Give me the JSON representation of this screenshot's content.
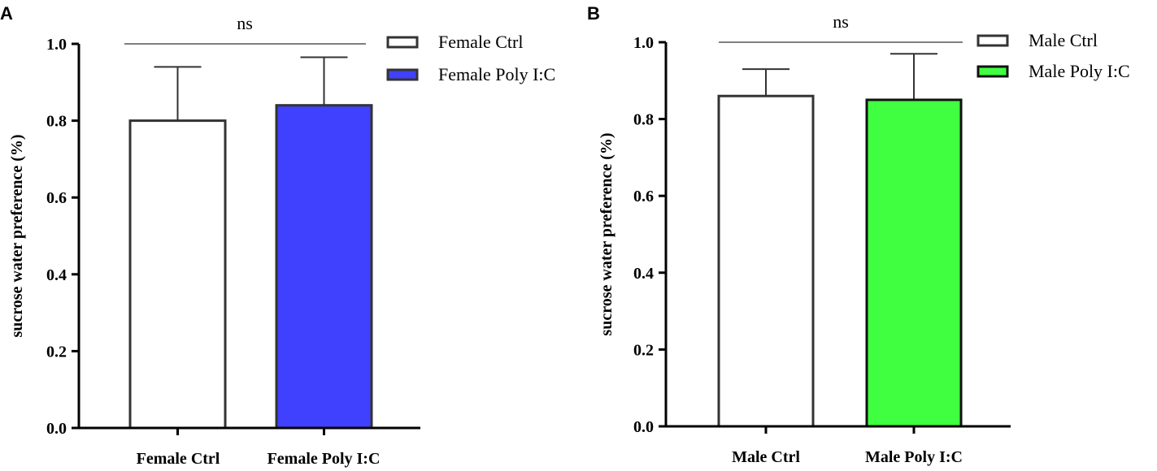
{
  "chart_data": [
    {
      "type": "bar",
      "panel": "A",
      "ylabel": "sucrose water preference (%)",
      "xlabel": "",
      "ylim": [
        0,
        1.0
      ],
      "yticks": [
        "0.0",
        "0.2",
        "0.4",
        "0.6",
        "0.8",
        "1.0"
      ],
      "categories": [
        "Female Ctrl",
        "Female Poly I:C"
      ],
      "values": [
        0.8,
        0.84
      ],
      "errors": [
        0.14,
        0.125
      ],
      "colors": [
        "#ffffff",
        "#4040ff"
      ],
      "legend": [
        {
          "label": "Female Ctrl",
          "color": "#ffffff"
        },
        {
          "label": "Female Poly I:C",
          "color": "#4040ff"
        }
      ],
      "legend_position": "top-right",
      "significance": {
        "label": "ns",
        "level": 1.0
      }
    },
    {
      "type": "bar",
      "panel": "B",
      "ylabel": "sucrose water preference (%)",
      "xlabel": "",
      "ylim": [
        0,
        1.0
      ],
      "yticks": [
        "0.0",
        "0.2",
        "0.4",
        "0.6",
        "0.8",
        "1.0"
      ],
      "categories": [
        "Male Ctrl",
        "Male Poly I:C"
      ],
      "values": [
        0.86,
        0.85
      ],
      "errors": [
        0.07,
        0.12
      ],
      "colors": [
        "#ffffff",
        "#40ff40"
      ],
      "legend": [
        {
          "label": "Male Ctrl",
          "color": "#ffffff"
        },
        {
          "label": "Male Poly I:C",
          "color": "#40ff40"
        }
      ],
      "legend_position": "top-right",
      "significance": {
        "label": "ns",
        "level": 1.0
      }
    }
  ]
}
